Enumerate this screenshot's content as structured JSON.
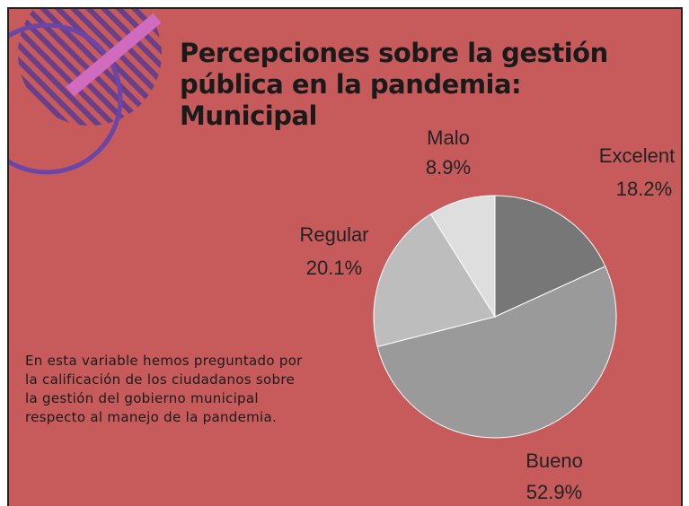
{
  "chart_data": {
    "type": "pie",
    "title": "Percepciones sobre la gestión pública en la pandemia: Municipal",
    "description": "En esta variable hemos preguntado por la calificación de los ciudadanos sobre la gestión del gobierno municipal respecto al manejo de la pandemia.",
    "categories": [
      "Excelent",
      "Bueno",
      "Regular",
      "Malo"
    ],
    "values": [
      18.2,
      52.9,
      20.1,
      8.9
    ],
    "value_labels": [
      "18.2%",
      "52.9%",
      "20.1%",
      "8.9%"
    ],
    "colors": [
      "#777777",
      "#9a9a9a",
      "#bdbdbd",
      "#dedede"
    ]
  }
}
